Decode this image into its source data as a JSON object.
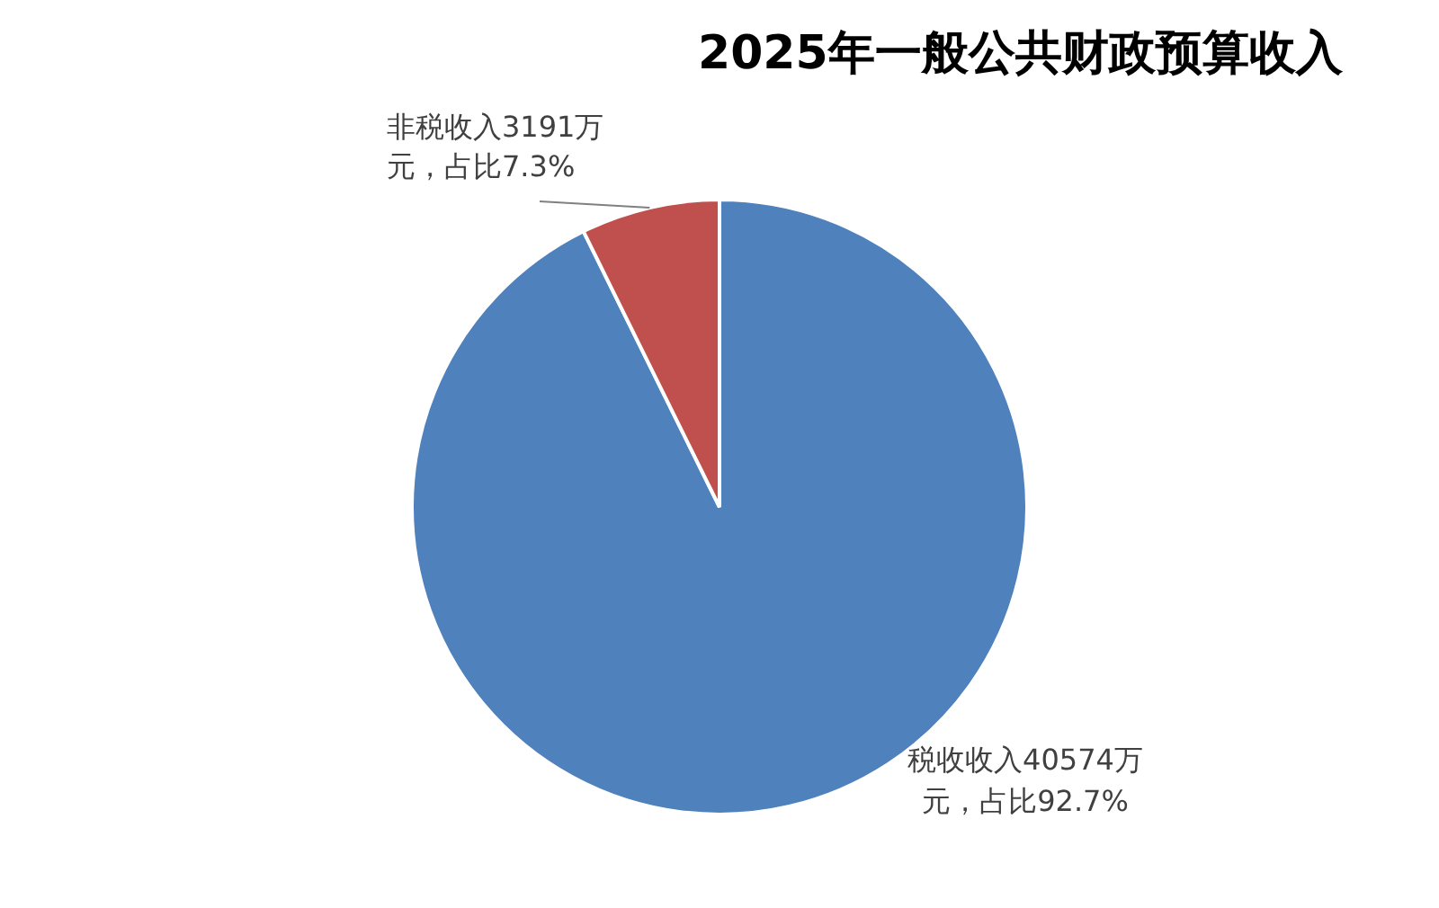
{
  "chart_data": {
    "type": "pie",
    "title": "2025年一般公共财政预算收入",
    "categories": [
      "税收收入",
      "非税收入"
    ],
    "values": [
      40574,
      3191
    ],
    "colors": [
      "#4f81bd",
      "#c0504d"
    ],
    "value_labels": [
      "40574万元，占比92.7%",
      "3191万元，占比7.3%"
    ],
    "legend": false
  }
}
